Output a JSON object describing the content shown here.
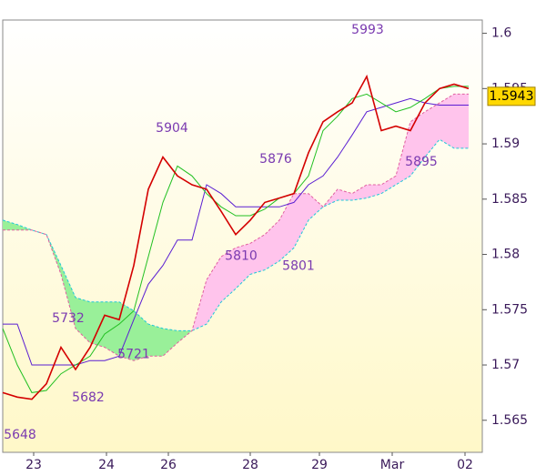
{
  "chart_data": {
    "type": "ichimoku",
    "x": [
      0,
      4,
      8,
      12,
      16,
      20,
      24,
      28,
      32,
      36,
      40,
      44,
      48,
      52,
      56,
      60,
      64,
      68,
      72,
      76,
      80,
      84,
      88,
      92,
      96,
      100,
      104,
      108,
      112,
      116,
      120,
      124,
      128
    ],
    "xlim": [
      0,
      131.75
    ],
    "xticks": [
      {
        "value": 8.5,
        "label": "23"
      },
      {
        "value": 28.5,
        "label": "24"
      },
      {
        "value": 45.5,
        "label": "26"
      },
      {
        "value": 68,
        "label": "28"
      },
      {
        "value": 87,
        "label": "29"
      },
      {
        "value": 107,
        "label": "Mar"
      },
      {
        "value": 127,
        "label": "02"
      }
    ],
    "ylim": [
      1.5621,
      1.6012
    ],
    "yticks": [
      1.565,
      1.57,
      1.575,
      1.58,
      1.585,
      1.59,
      1.595,
      1.6
    ],
    "series": [
      {
        "role": "price",
        "color": "#d40000",
        "values": [
          1.5675,
          1.5671,
          1.5669,
          1.5683,
          1.5716,
          1.5696,
          1.5716,
          1.5745,
          1.5741,
          1.579,
          1.5859,
          1.5888,
          1.5871,
          1.5863,
          1.5859,
          1.5839,
          1.5818,
          1.5831,
          1.5847,
          1.5851,
          1.5855,
          1.5892,
          1.592,
          1.5929,
          1.5937,
          1.5961,
          1.5912,
          1.5916,
          1.5912,
          1.5937,
          1.595,
          1.5954,
          1.595
        ]
      },
      {
        "role": "tenkan",
        "color": "#22c022",
        "values": [
          1.5733,
          1.57,
          1.5675,
          1.5677,
          1.5692,
          1.57,
          1.5708,
          1.5728,
          1.5737,
          1.5749,
          1.5798,
          1.5847,
          1.588,
          1.5871,
          1.5855,
          1.5843,
          1.5835,
          1.5835,
          1.5841,
          1.5851,
          1.5855,
          1.5871,
          1.5912,
          1.5925,
          1.5941,
          1.5945,
          1.5937,
          1.5929,
          1.5933,
          1.5941,
          1.595,
          1.5952,
          1.5952
        ]
      },
      {
        "role": "kijun",
        "color": "#5a1ed2",
        "values": [
          1.5737,
          1.5737,
          1.57,
          1.57,
          1.57,
          1.57,
          1.5704,
          1.5704,
          1.5708,
          1.5741,
          1.5773,
          1.579,
          1.5813,
          1.5813,
          1.5863,
          1.5855,
          1.5843,
          1.5843,
          1.5843,
          1.5843,
          1.5847,
          1.5863,
          1.5871,
          1.5888,
          1.5908,
          1.5929,
          1.5933,
          1.5937,
          1.5941,
          1.5937,
          1.5935,
          1.5935,
          1.5935
        ]
      },
      {
        "role": "span-a",
        "color": "#20c8d8",
        "values": [
          1.5831,
          1.5827,
          1.5822,
          1.5818,
          1.579,
          1.5761,
          1.5757,
          1.5757,
          1.5757,
          1.5749,
          1.5737,
          1.5733,
          1.5731,
          1.5731,
          1.5737,
          1.5757,
          1.5769,
          1.5782,
          1.5786,
          1.5794,
          1.5806,
          1.5831,
          1.5843,
          1.5849,
          1.5849,
          1.5851,
          1.5855,
          1.5863,
          1.5871,
          1.5888,
          1.5904,
          1.5896,
          1.5896
        ]
      },
      {
        "role": "span-b",
        "color": "#e060a0",
        "values": [
          1.5822,
          1.5822,
          1.5822,
          1.5818,
          1.5782,
          1.5733,
          1.572,
          1.5716,
          1.5708,
          1.5704,
          1.5708,
          1.5708,
          1.572,
          1.5731,
          1.5777,
          1.5798,
          1.5806,
          1.581,
          1.5818,
          1.5831,
          1.5855,
          1.5855,
          1.5843,
          1.5859,
          1.5855,
          1.5863,
          1.5863,
          1.5871,
          1.592,
          1.5929,
          1.5937,
          1.5945,
          1.5945
        ]
      }
    ],
    "cloud_up_color": "#99f099",
    "cloud_down_color": "#ffc4ec",
    "annotations": [
      {
        "text": "5648",
        "x": 4.75,
        "y": 1.5648,
        "position": "below"
      },
      {
        "text": "5682",
        "x": 23.5,
        "y": 1.5682,
        "position": "below"
      },
      {
        "text": "5732",
        "x": 18,
        "y": 1.5732,
        "position": "above"
      },
      {
        "text": "5721",
        "x": 36,
        "y": 1.5721,
        "position": "below"
      },
      {
        "text": "5904",
        "x": 46.5,
        "y": 1.5904,
        "position": "above"
      },
      {
        "text": "5810",
        "x": 65.5,
        "y": 1.581,
        "position": "below"
      },
      {
        "text": "5876",
        "x": 75,
        "y": 1.5876,
        "position": "above"
      },
      {
        "text": "5801",
        "x": 81.25,
        "y": 1.5801,
        "position": "below"
      },
      {
        "text": "5993",
        "x": 100.25,
        "y": 1.5993,
        "position": "above"
      },
      {
        "text": "5895",
        "x": 115,
        "y": 1.5895,
        "position": "below"
      }
    ],
    "last_price": {
      "value": 1.5943,
      "label": "1.5943"
    },
    "last_price_color": "#ffd800"
  }
}
